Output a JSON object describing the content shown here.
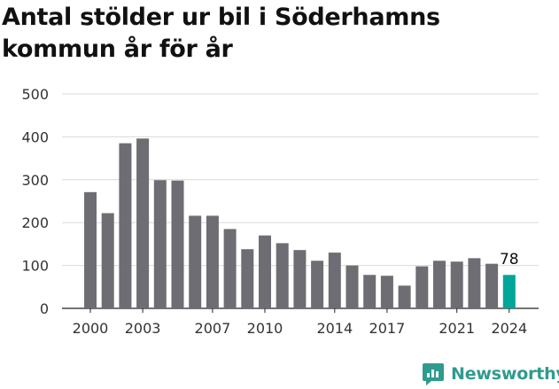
{
  "title": "Antal stölder ur bil i Söderhamns kommun år för år",
  "brand": {
    "name": "Newsworthy",
    "icon": "newsworthy-logo-icon",
    "color": "#2f9b8f"
  },
  "colors": {
    "bar": "#6e6d73",
    "highlight": "#00a697",
    "grid": "#d9d9d9",
    "text": "#333333"
  },
  "chart_data": {
    "type": "bar",
    "title": "Antal stölder ur bil i Söderhamns kommun år för år",
    "xlabel": "",
    "ylabel": "",
    "categories": [
      "2000",
      "2001",
      "2002",
      "2003",
      "2004",
      "2005",
      "2006",
      "2007",
      "2008",
      "2009",
      "2010",
      "2011",
      "2012",
      "2013",
      "2014",
      "2015",
      "2016",
      "2017",
      "2018",
      "2019",
      "2020",
      "2021",
      "2022",
      "2023",
      "2024"
    ],
    "values": [
      271,
      222,
      385,
      396,
      299,
      298,
      216,
      216,
      185,
      138,
      170,
      152,
      136,
      111,
      130,
      100,
      78,
      76,
      53,
      98,
      111,
      109,
      117,
      104,
      78
    ],
    "x_tick_labels": [
      "2000",
      "2003",
      "2007",
      "2010",
      "2014",
      "2017",
      "2021",
      "2024"
    ],
    "y_ticks": [
      0,
      100,
      200,
      300,
      400,
      500
    ],
    "ylim": [
      0,
      500
    ],
    "grid": true,
    "legend": "none",
    "highlight": {
      "category": "2024",
      "value_label": "78"
    }
  }
}
